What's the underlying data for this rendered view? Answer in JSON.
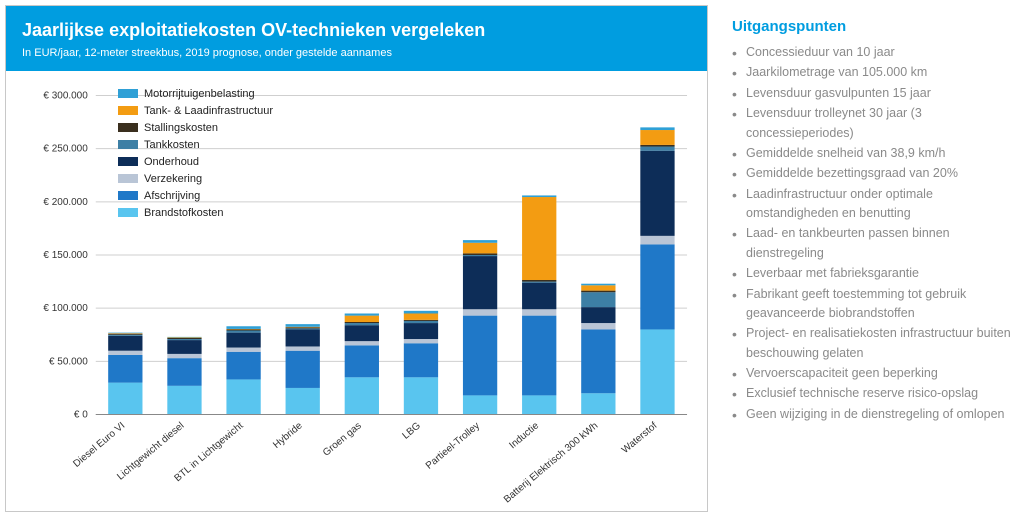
{
  "header": {
    "title": "Jaarlijkse exploitatiekosten OV-technieken vergeleken",
    "subtitle": "In EUR/jaar, 12-meter streekbus, 2019 prognose, onder gestelde aannames"
  },
  "chart": {
    "type": "stacked-bar",
    "background_color": "#ffffff",
    "grid_color": "#cfcfcf",
    "y_axis": {
      "min": 0,
      "max": 300000,
      "step": 50000,
      "tick_fontsize": 10,
      "tick_prefix": "€ ",
      "format_thousands": "."
    },
    "x_label_fontsize": 10,
    "x_label_rotation_deg": -40,
    "bar_width_ratio": 0.58,
    "legend_position": "top-left-inside",
    "series_order_top_to_bottom_legend": [
      "Motorrijtuigenbelasting",
      "Tank- & Laadinfrastructuur",
      "Stallingskosten",
      "Tankkosten",
      "Onderhoud",
      "Verzekering",
      "Afschrijving",
      "Brandstofkosten"
    ],
    "colors": {
      "Brandstofkosten": "#59c5ef",
      "Afschrijving": "#1f78c8",
      "Verzekering": "#b9c5d6",
      "Onderhoud": "#0d2d58",
      "Tankkosten": "#3d7fa5",
      "Stallingskosten": "#3a2f1e",
      "Tank- & Laadinfrastructuur": "#f39c12",
      "Motorrijtuigenbelasting": "#2fa0d6"
    },
    "categories": [
      "Diesel Euro VI",
      "Lichtgewicht diesel",
      "BTL in Lichtgewicht",
      "Hybride",
      "Groen gas",
      "LBG",
      "Partieel-Trolley",
      "Inductie",
      "Batterij Elektrisch 300 kWh",
      "Waterstof"
    ],
    "data": {
      "Diesel Euro VI": {
        "Brandstofkosten": 30000,
        "Afschrijving": 26000,
        "Verzekering": 4000,
        "Onderhoud": 14000,
        "Tankkosten": 1000,
        "Stallingskosten": 1000,
        "Tank- & Laadinfrastructuur": 500,
        "Motorrijtuigenbelasting": 500
      },
      "Lichtgewicht diesel": {
        "Brandstofkosten": 27000,
        "Afschrijving": 26000,
        "Verzekering": 4000,
        "Onderhoud": 13000,
        "Tankkosten": 1000,
        "Stallingskosten": 1000,
        "Tank- & Laadinfrastructuur": 500,
        "Motorrijtuigenbelasting": 500
      },
      "BTL in Lichtgewicht": {
        "Brandstofkosten": 33000,
        "Afschrijving": 26000,
        "Verzekering": 4000,
        "Onderhoud": 14000,
        "Tankkosten": 2000,
        "Stallingskosten": 1000,
        "Tank- & Laadinfrastructuur": 500,
        "Motorrijtuigenbelasting": 2500
      },
      "Hybride": {
        "Brandstofkosten": 25000,
        "Afschrijving": 35000,
        "Verzekering": 4000,
        "Onderhoud": 16000,
        "Tankkosten": 1000,
        "Stallingskosten": 1000,
        "Tank- & Laadinfrastructuur": 500,
        "Motorrijtuigenbelasting": 2500
      },
      "Groen gas": {
        "Brandstofkosten": 35000,
        "Afschrijving": 30000,
        "Verzekering": 4000,
        "Onderhoud": 15000,
        "Tankkosten": 2000,
        "Stallingskosten": 1000,
        "Tank- & Laadinfrastructuur": 6000,
        "Motorrijtuigenbelasting": 2000
      },
      "LBG": {
        "Brandstofkosten": 35000,
        "Afschrijving": 32000,
        "Verzekering": 4000,
        "Onderhoud": 15000,
        "Tankkosten": 2000,
        "Stallingskosten": 1000,
        "Tank- & Laadinfrastructuur": 6000,
        "Motorrijtuigenbelasting": 2500
      },
      "Partieel-Trolley": {
        "Brandstofkosten": 18000,
        "Afschrijving": 75000,
        "Verzekering": 6000,
        "Onderhoud": 50000,
        "Tankkosten": 1000,
        "Stallingskosten": 1500,
        "Tank- & Laadinfrastructuur": 10000,
        "Motorrijtuigenbelasting": 2500
      },
      "Inductie": {
        "Brandstofkosten": 18000,
        "Afschrijving": 75000,
        "Verzekering": 6000,
        "Onderhoud": 25000,
        "Tankkosten": 1000,
        "Stallingskosten": 1500,
        "Tank- & Laadinfrastructuur": 78000,
        "Motorrijtuigenbelasting": 1500
      },
      "Batterij Elektrisch 300 kWh": {
        "Brandstofkosten": 20000,
        "Afschrijving": 60000,
        "Verzekering": 6000,
        "Onderhoud": 15000,
        "Tankkosten": 14000,
        "Stallingskosten": 1500,
        "Tank- & Laadinfrastructuur": 5000,
        "Motorrijtuigenbelasting": 1500
      },
      "Waterstof": {
        "Brandstofkosten": 80000,
        "Afschrijving": 80000,
        "Verzekering": 8000,
        "Onderhoud": 80000,
        "Tankkosten": 4000,
        "Stallingskosten": 1500,
        "Tank- & Laadinfrastructuur": 14000,
        "Motorrijtuigenbelasting": 2500
      }
    }
  },
  "sidebar": {
    "heading": "Uitgangspunten",
    "bullets": [
      "Concessieduur van 10 jaar",
      "Jaarkilometrage van 105.000 km",
      "Levensduur gasvulpunten 15 jaar",
      "Levensduur trolleynet 30 jaar  (3 concessieperiodes)",
      "Gemiddelde snelheid van 38,9 km/h",
      "Gemiddelde bezettingsgraad van 20%",
      "Laadinfrastructuur onder optimale omstandigheden en benutting",
      "Laad- en tankbeurten passen binnen dienstregeling",
      "Leverbaar met fabrieksgarantie",
      "Fabrikant geeft toestemming tot gebruik geavanceerde biobrandstoffen",
      "Project- en realisatiekosten infrastructuur buiten beschouwing gelaten",
      "Vervoerscapaciteit geen beperking",
      "Exclusief technische reserve risico-opslag",
      "Geen wijziging in de dienstregeling of omlopen"
    ]
  }
}
